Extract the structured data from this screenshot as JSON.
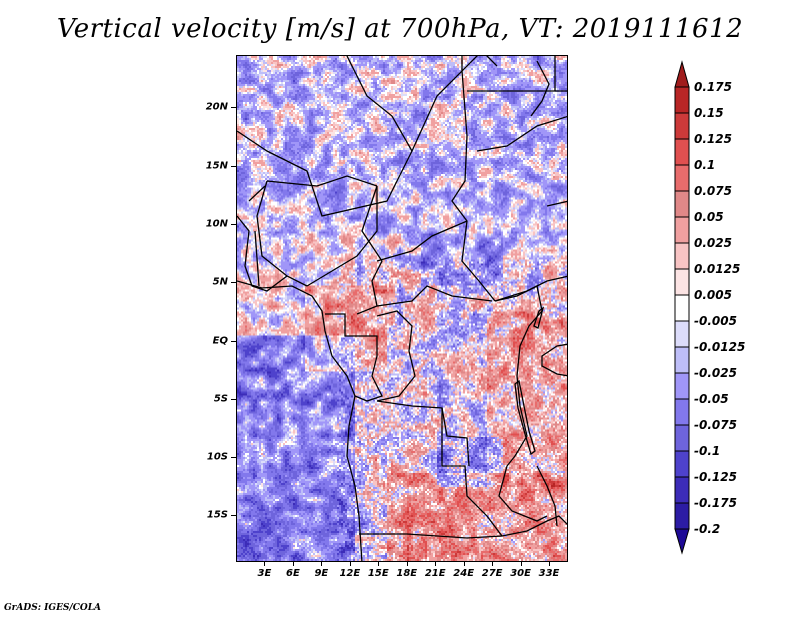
{
  "title": "Vertical velocity [m/s] at 700hPa, VT: 2019111612",
  "footer": "GrADS: IGES/COLA",
  "chart_data": {
    "type": "heatmap",
    "title": "Vertical velocity [m/s] at 700hPa, VT: 2019111612",
    "variable": "Vertical velocity",
    "units": "m/s",
    "level": "700hPa",
    "valid_time": "2019111612",
    "region": "Central Africa",
    "lon_range": [
      0,
      35
    ],
    "lat_range": [
      -19,
      24.5
    ],
    "x_ticks": [
      "3E",
      "6E",
      "9E",
      "12E",
      "15E",
      "18E",
      "21E",
      "24E",
      "27E",
      "30E",
      "33E"
    ],
    "x_tick_values": [
      3,
      6,
      9,
      12,
      15,
      18,
      21,
      24,
      27,
      30,
      33
    ],
    "y_ticks": [
      "20N",
      "15N",
      "10N",
      "5N",
      "EQ",
      "5S",
      "10S",
      "15S"
    ],
    "y_tick_values": [
      20,
      15,
      10,
      5,
      0,
      -5,
      -10,
      -15
    ],
    "colorbar": {
      "labels": [
        "0.175",
        "0.15",
        "0.125",
        "0.1",
        "0.075",
        "0.05",
        "0.025",
        "0.0125",
        "0.005",
        "-0.005",
        "-0.0125",
        "-0.025",
        "-0.05",
        "-0.075",
        "-0.1",
        "-0.125",
        "-0.175",
        "-0.2"
      ],
      "colors": [
        "#a01c1c",
        "#b82626",
        "#cc3a3a",
        "#e05050",
        "#e86c6c",
        "#e08888",
        "#f0a0a0",
        "#f8c4c4",
        "#fce4e4",
        "#ffffff",
        "#dcdcfa",
        "#bebef8",
        "#a096f8",
        "#8278ec",
        "#6e64dc",
        "#4e42cc",
        "#3c2cb8",
        "#2c1ca4",
        "#1e0a96"
      ]
    },
    "description": "Noisy field with positive (red) uplift along coasts, Great Lakes region and southern Congo/Zambia; negative (blue) subsidence over Atlantic south of equator and Sahel."
  }
}
